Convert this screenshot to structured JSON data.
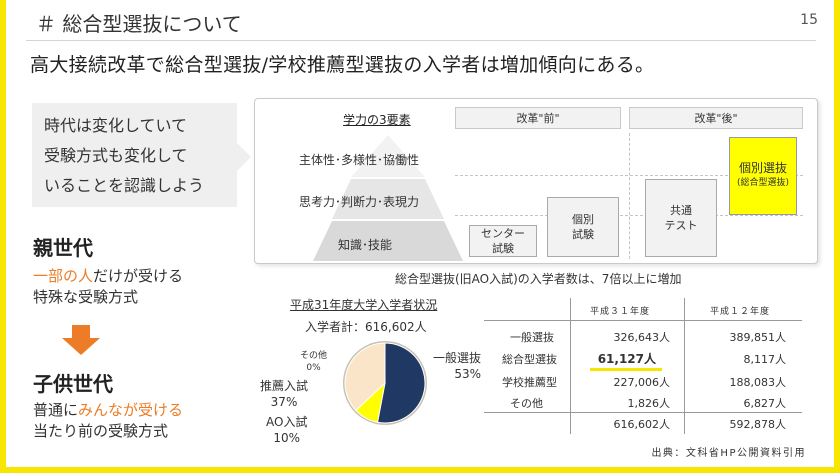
{
  "header": {
    "title": "＃ 総合型選抜について",
    "page_number": "15"
  },
  "subtitle": "高大接続改革で総合型選抜/学校推薦型選抜の入学者は増加傾向にある。",
  "note": {
    "lines": [
      "時代は変化していて",
      "受験方式も変化して",
      "いることを認識しよう"
    ]
  },
  "parents": {
    "title": "親世代",
    "desc_highlight": "一部の人",
    "desc_rest": "だけが受ける",
    "desc_line2": "特殊な受験方式"
  },
  "children": {
    "title": "子供世代",
    "desc_prefix": "普通に",
    "desc_highlight": "みんなが受ける",
    "desc_line2": "当たり前の受験方式"
  },
  "diagram": {
    "pyramid_title": "学力の3要素",
    "levels": [
      "主体性･多様性･協働性",
      "思考力･判断力･表現力",
      "知識･技能"
    ],
    "before_label": "改革\"前\"",
    "after_label": "改革\"後\"",
    "center_exam": [
      "センター",
      "試験"
    ],
    "individual_before": [
      "個別",
      "試験"
    ],
    "common_test": [
      "共通",
      "テスト"
    ],
    "individual_after": "個別選抜",
    "individual_after_note": "(総合型選抜)"
  },
  "caption": "総合型選抜(旧AO入試)の入学者数は、7倍以上に増加",
  "pie": {
    "title": "平成31年度大学入学者状況",
    "total_label": "入学者計：616,602人",
    "slices": [
      {
        "name": "一般選抜",
        "percent_label": "53%",
        "value": 53,
        "color": "#1f3864"
      },
      {
        "name": "AO入試",
        "percent_label": "10%",
        "value": 10,
        "color": "#ffff00"
      },
      {
        "name": "推薦入試",
        "percent_label": "37%",
        "value": 37,
        "color": "#fbe5c8"
      },
      {
        "name": "その他",
        "percent_label": "0%",
        "value": 0,
        "color": "#cccccc"
      }
    ],
    "ring_color": "#c8c2b4"
  },
  "table": {
    "headers": [
      "平成３１年度",
      "平成１２年度"
    ],
    "rows": [
      {
        "label": "一般選抜",
        "h31": "326,643人",
        "h12": "389,851人"
      },
      {
        "label": "総合型選抜",
        "h31": "61,127人",
        "h12": "8,117人"
      },
      {
        "label": "学校推薦型",
        "h31": "227,006人",
        "h12": "188,083人"
      },
      {
        "label": "その他",
        "h31": "1,826人",
        "h12": "6,827人"
      }
    ],
    "total": {
      "h31": "616,602人",
      "h12": "592,878人"
    }
  },
  "source": "出典：文科省HP公開資料引用",
  "colors": {
    "accent_yellow": "#f7e600",
    "orange": "#ec7d26",
    "navy": "#1f3864"
  }
}
